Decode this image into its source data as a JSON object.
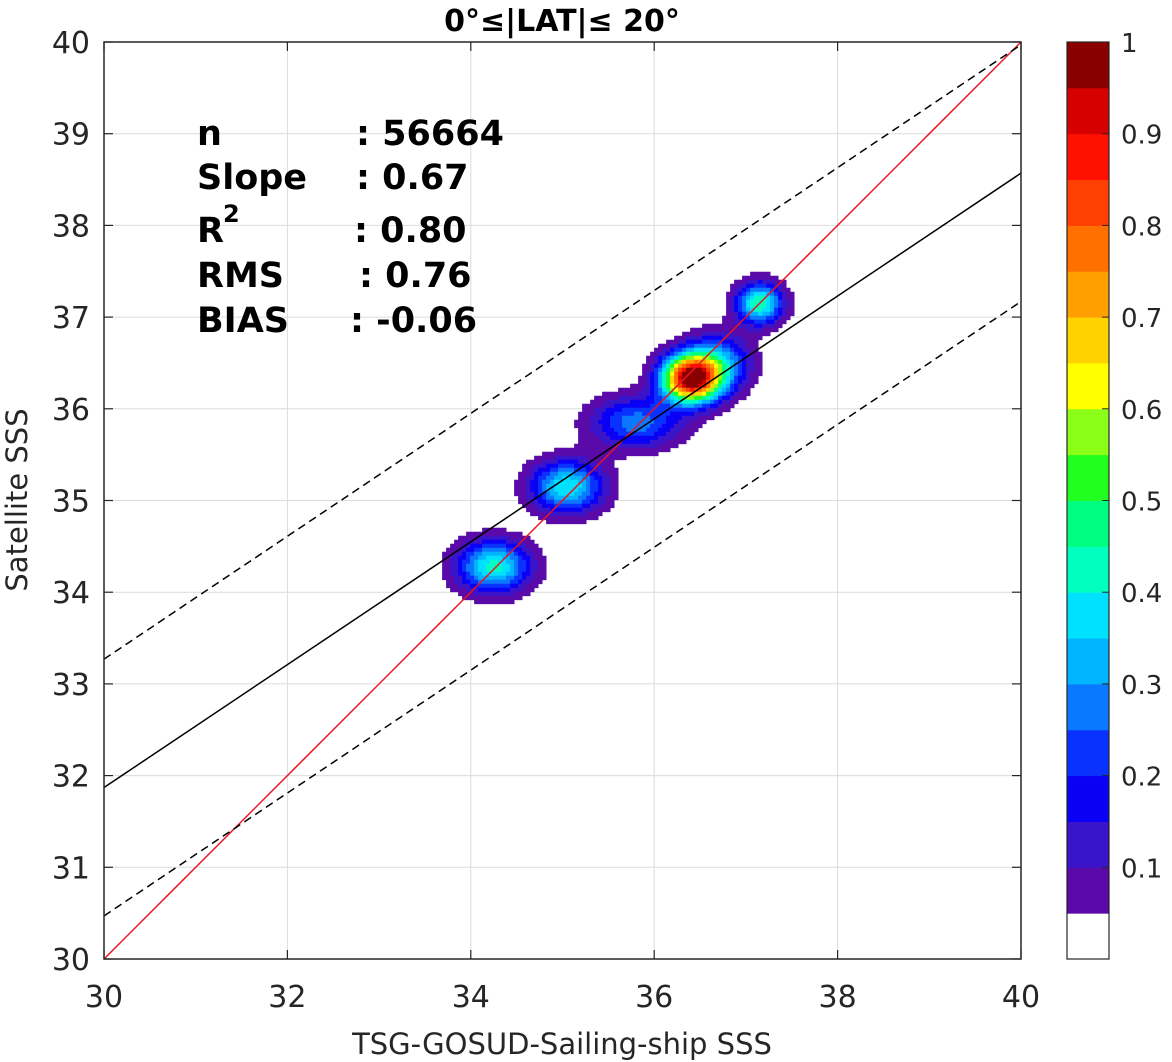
{
  "chart_data": {
    "type": "heatmap",
    "title": "0°≤|LAT|≤ 20°",
    "xlabel": "TSG-GOSUD-Sailing-ship SSS",
    "ylabel": "Satellite SSS",
    "xlim": [
      30,
      40
    ],
    "ylim": [
      30,
      40
    ],
    "xticks": [
      "30",
      "32",
      "34",
      "36",
      "38",
      "40"
    ],
    "yticks": [
      "30",
      "31",
      "32",
      "33",
      "34",
      "35",
      "36",
      "37",
      "38",
      "39",
      "40"
    ],
    "grid": true,
    "stats": {
      "n_label": "n",
      "n_value": ": 56664",
      "slope_label": "Slope",
      "slope_value": ": 0.67",
      "r2_label": "R",
      "r2_sup": "2",
      "r2_value": ": 0.80",
      "rms_label": "RMS",
      "rms_value": ": 0.76",
      "bias_label": "BIAS",
      "bias_value": ": -0.06"
    },
    "lines": [
      {
        "kind": "one-to-one",
        "color": "#e8141e",
        "dash": "solid",
        "x": [
          30,
          40
        ],
        "y": [
          30,
          40
        ]
      },
      {
        "kind": "regression",
        "color": "#000000",
        "dash": "solid",
        "x": [
          30,
          40
        ],
        "y": [
          31.87,
          38.57
        ]
      },
      {
        "kind": "upper-bound",
        "color": "#000000",
        "dash": "dashed",
        "x": [
          30,
          40
        ],
        "y": [
          33.27,
          39.97
        ]
      },
      {
        "kind": "lower-bound",
        "color": "#000000",
        "dash": "dashed",
        "x": [
          30,
          40
        ],
        "y": [
          30.47,
          37.17
        ]
      }
    ],
    "density_peaks": [
      {
        "x": 34.25,
        "y": 34.28,
        "sx": 0.28,
        "sy": 0.2,
        "a": 0.42
      },
      {
        "x": 35.05,
        "y": 35.15,
        "sx": 0.28,
        "sy": 0.2,
        "a": 0.4
      },
      {
        "x": 35.8,
        "y": 35.85,
        "sx": 0.35,
        "sy": 0.2,
        "a": 0.28
      },
      {
        "x": 36.4,
        "y": 36.33,
        "sx": 0.22,
        "sy": 0.18,
        "a": 0.98
      },
      {
        "x": 36.7,
        "y": 36.5,
        "sx": 0.25,
        "sy": 0.22,
        "a": 0.3
      },
      {
        "x": 37.15,
        "y": 37.15,
        "sx": 0.18,
        "sy": 0.16,
        "a": 0.45
      }
    ],
    "colorbar": {
      "ticks": [
        "0.1",
        "0.2",
        "0.3",
        "0.4",
        "0.5",
        "0.6",
        "0.7",
        "0.8",
        "0.9",
        "1"
      ],
      "levels": [
        0.05,
        0.1,
        0.15,
        0.2,
        0.25,
        0.3,
        0.35,
        0.4,
        0.45,
        0.5,
        0.55,
        0.6,
        0.65,
        0.7,
        0.75,
        0.8,
        0.85,
        0.9,
        0.95,
        1.0
      ],
      "colors": [
        "#ffffff",
        "#5a0aa8",
        "#3a14c8",
        "#0a00f5",
        "#0a32ff",
        "#0a78ff",
        "#00b4ff",
        "#00e0ff",
        "#00ffc0",
        "#00ff80",
        "#20ff20",
        "#8cff18",
        "#ffff00",
        "#ffd200",
        "#ffa000",
        "#ff7000",
        "#ff4000",
        "#ff1000",
        "#d70000",
        "#8a0000"
      ]
    }
  }
}
